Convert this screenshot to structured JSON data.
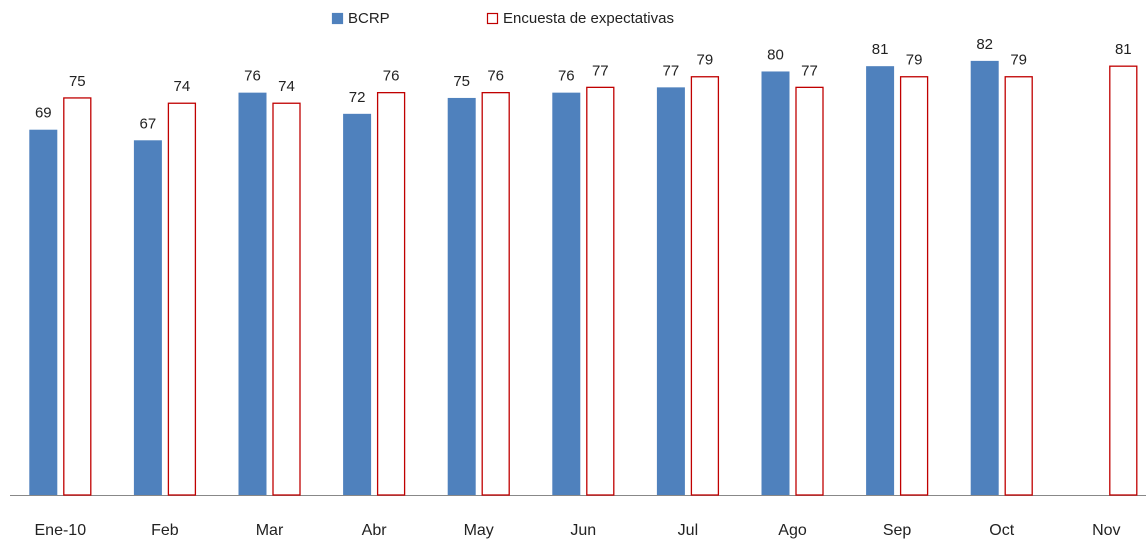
{
  "chart_data": {
    "type": "bar",
    "categories": [
      "Ene-10",
      "Feb",
      "Mar",
      "Abr",
      "May",
      "Jun",
      "Jul",
      "Ago",
      "Sep",
      "Oct",
      "Nov"
    ],
    "series": [
      {
        "name": "BCRP",
        "color": "#4f81bd",
        "fill": true,
        "values": [
          69,
          67,
          76,
          72,
          75,
          76,
          77,
          80,
          81,
          82,
          null
        ]
      },
      {
        "name": "Encuesta de expectativas",
        "color": "#c00000",
        "fill": false,
        "values": [
          75,
          74,
          74,
          76,
          76,
          77,
          79,
          77,
          79,
          79,
          81
        ]
      }
    ],
    "ylim": [
      0,
      85
    ],
    "legend": "top"
  }
}
